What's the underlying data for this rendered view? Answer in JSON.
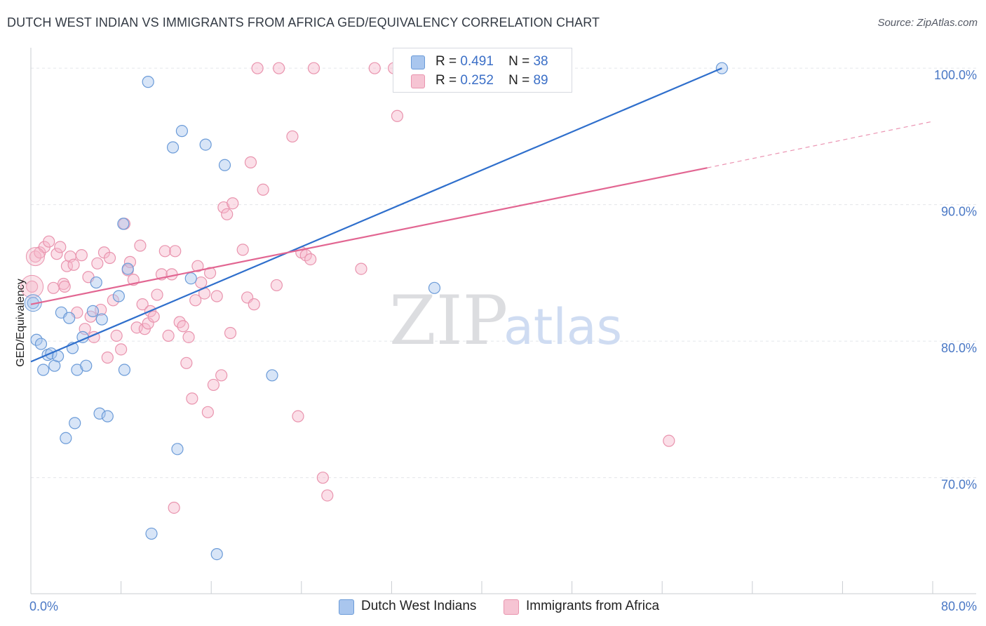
{
  "title": "DUTCH WEST INDIAN VS IMMIGRANTS FROM AFRICA GED/EQUIVALENCY CORRELATION CHART",
  "source": "Source: ZipAtlas.com",
  "watermark": {
    "zip": "ZIP",
    "atlas": "atlas"
  },
  "legend": {
    "rows": [
      {
        "r_label": "R =",
        "r_value": "0.491",
        "n_label": "N =",
        "n_value": "38"
      },
      {
        "r_label": "R =",
        "r_value": "0.252",
        "n_label": "N =",
        "n_value": "89"
      }
    ]
  },
  "bottom_legend": [
    "Dutch West Indians",
    "Immigrants from Africa"
  ],
  "colors": {
    "blue_fill": "#a9c6ee",
    "blue_stroke": "#6b9bd8",
    "blue_line": "#2f6fcc",
    "pink_fill": "#f6b9cb",
    "pink_stroke": "#e994ae",
    "pink_line": "#e26692",
    "axis_label": "#4a78c5",
    "grid": "#e4e6ea"
  },
  "chart_data": {
    "type": "scatter",
    "title": "DUTCH WEST INDIAN VS IMMIGRANTS FROM AFRICA GED/EQUIVALENCY CORRELATION CHART",
    "xlabel": "",
    "ylabel": "GED/Equivalency",
    "xlim": [
      0,
      80
    ],
    "ylim": [
      61.5,
      101.5
    ],
    "x_tick_labels": [
      "0.0%",
      "80.0%"
    ],
    "y_ticks": [
      70,
      80,
      90,
      100
    ],
    "y_tick_labels": [
      "70.0%",
      "80.0%",
      "90.0%",
      "100.0%"
    ],
    "grid": true,
    "series": [
      {
        "name": "Dutch West Indians",
        "r": 0.491,
        "n": 38,
        "trend": {
          "x": [
            0,
            61.3
          ],
          "y": [
            78.5,
            100.0
          ]
        },
        "points": [
          [
            0.2,
            82.8
          ],
          [
            0.5,
            80.1
          ],
          [
            0.9,
            79.8
          ],
          [
            1.1,
            77.9
          ],
          [
            1.5,
            79.0
          ],
          [
            1.8,
            79.1
          ],
          [
            2.1,
            78.2
          ],
          [
            2.4,
            78.9
          ],
          [
            2.7,
            82.1
          ],
          [
            3.1,
            72.9
          ],
          [
            3.4,
            81.7
          ],
          [
            3.7,
            79.5
          ],
          [
            3.9,
            74.0
          ],
          [
            4.1,
            77.9
          ],
          [
            4.6,
            80.3
          ],
          [
            4.9,
            78.2
          ],
          [
            5.5,
            82.2
          ],
          [
            5.8,
            84.3
          ],
          [
            6.1,
            74.7
          ],
          [
            6.3,
            81.6
          ],
          [
            6.8,
            74.5
          ],
          [
            7.8,
            83.3
          ],
          [
            8.2,
            88.6
          ],
          [
            8.3,
            77.9
          ],
          [
            8.6,
            85.3
          ],
          [
            10.4,
            99.0
          ],
          [
            10.7,
            65.9
          ],
          [
            12.6,
            94.2
          ],
          [
            13.0,
            72.1
          ],
          [
            13.4,
            95.4
          ],
          [
            14.2,
            84.6
          ],
          [
            15.5,
            94.4
          ],
          [
            16.5,
            64.4
          ],
          [
            17.2,
            92.9
          ],
          [
            21.4,
            77.5
          ],
          [
            34.6,
            100.0
          ],
          [
            35.8,
            83.9
          ],
          [
            61.3,
            100.0
          ]
        ]
      },
      {
        "name": "Immigrants from Africa",
        "r": 0.252,
        "n": 89,
        "trend": {
          "x": [
            0,
            60.0
          ],
          "y": [
            82.7,
            92.7
          ]
        },
        "trend_dashed": {
          "x": [
            60.0,
            80.0
          ],
          "y": [
            92.7,
            96.1
          ]
        },
        "points": [
          [
            0.1,
            84.0
          ],
          [
            0.4,
            86.2
          ],
          [
            0.8,
            86.5
          ],
          [
            1.2,
            86.9
          ],
          [
            1.6,
            87.3
          ],
          [
            2.0,
            83.9
          ],
          [
            2.3,
            86.4
          ],
          [
            2.6,
            86.9
          ],
          [
            2.9,
            84.2
          ],
          [
            3.2,
            85.5
          ],
          [
            3.5,
            86.2
          ],
          [
            3.8,
            85.6
          ],
          [
            4.1,
            82.1
          ],
          [
            4.5,
            86.3
          ],
          [
            4.8,
            80.9
          ],
          [
            5.1,
            84.7
          ],
          [
            5.3,
            81.8
          ],
          [
            5.6,
            80.3
          ],
          [
            5.9,
            85.7
          ],
          [
            6.2,
            82.3
          ],
          [
            6.5,
            86.5
          ],
          [
            6.8,
            78.8
          ],
          [
            7.0,
            86.1
          ],
          [
            7.3,
            83.0
          ],
          [
            7.6,
            80.4
          ],
          [
            8.0,
            79.4
          ],
          [
            8.3,
            88.6
          ],
          [
            8.6,
            85.2
          ],
          [
            8.8,
            85.8
          ],
          [
            9.1,
            84.5
          ],
          [
            9.4,
            81.0
          ],
          [
            9.7,
            87.0
          ],
          [
            9.9,
            82.7
          ],
          [
            10.1,
            80.9
          ],
          [
            10.4,
            81.3
          ],
          [
            10.6,
            82.2
          ],
          [
            10.9,
            81.8
          ],
          [
            11.2,
            83.4
          ],
          [
            11.6,
            84.9
          ],
          [
            11.9,
            86.6
          ],
          [
            12.2,
            80.4
          ],
          [
            12.5,
            84.9
          ],
          [
            12.8,
            86.6
          ],
          [
            12.7,
            67.8
          ],
          [
            13.2,
            81.4
          ],
          [
            13.5,
            81.1
          ],
          [
            13.8,
            78.4
          ],
          [
            14.0,
            80.3
          ],
          [
            14.3,
            75.8
          ],
          [
            14.6,
            83.0
          ],
          [
            14.8,
            85.5
          ],
          [
            15.1,
            84.3
          ],
          [
            15.4,
            83.5
          ],
          [
            15.7,
            74.8
          ],
          [
            15.9,
            85.0
          ],
          [
            16.2,
            76.8
          ],
          [
            16.5,
            83.3
          ],
          [
            16.9,
            77.5
          ],
          [
            17.1,
            89.8
          ],
          [
            17.4,
            89.3
          ],
          [
            17.7,
            80.6
          ],
          [
            17.9,
            90.1
          ],
          [
            18.8,
            86.7
          ],
          [
            19.2,
            83.2
          ],
          [
            19.5,
            93.1
          ],
          [
            19.8,
            82.7
          ],
          [
            20.1,
            100.0
          ],
          [
            20.6,
            91.1
          ],
          [
            21.8,
            84.1
          ],
          [
            22.0,
            100.0
          ],
          [
            23.2,
            95.0
          ],
          [
            23.7,
            74.5
          ],
          [
            24.0,
            86.5
          ],
          [
            24.4,
            86.3
          ],
          [
            24.8,
            86.0
          ],
          [
            25.1,
            100.0
          ],
          [
            25.9,
            70.0
          ],
          [
            26.3,
            68.7
          ],
          [
            29.3,
            85.3
          ],
          [
            30.5,
            100.0
          ],
          [
            32.2,
            100.0
          ],
          [
            32.5,
            96.5
          ],
          [
            33.5,
            99.0
          ],
          [
            35.0,
            99.5
          ],
          [
            36.0,
            100.0
          ],
          [
            37.0,
            100.0
          ],
          [
            38.5,
            100.0
          ],
          [
            56.6,
            72.7
          ],
          [
            3.0,
            84.0
          ]
        ]
      }
    ]
  }
}
